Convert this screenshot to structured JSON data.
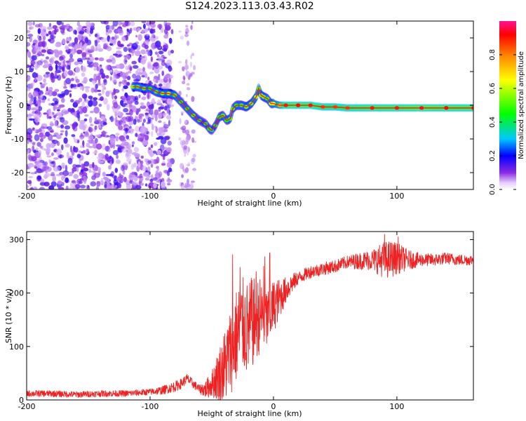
{
  "title": "S124.2023.113.03.43.R02",
  "chart_data": [
    {
      "type": "heatmap",
      "name": "spectrogram",
      "xlabel": "Height of straight line (km)",
      "ylabel": "Frequency (Hz)",
      "xlim": [
        -200,
        162
      ],
      "ylim": [
        -25,
        25
      ],
      "xticks": [
        -200,
        -100,
        0,
        100
      ],
      "yticks": [
        -20,
        -10,
        0,
        10,
        20
      ],
      "ridge": {
        "x": [
          -114,
          -110,
          -105,
          -100,
          -95,
          -90,
          -85,
          -80,
          -75,
          -70,
          -65,
          -60,
          -55,
          -52,
          -50,
          -47,
          -44,
          -41,
          -38,
          -35,
          -33,
          -30,
          -26,
          -22,
          -18,
          -14,
          -12,
          -10,
          -8,
          -5,
          -2,
          0,
          5,
          10,
          20,
          30,
          40,
          50,
          60,
          80,
          100,
          120,
          140,
          162
        ],
        "freq": [
          5.5,
          5.5,
          5.0,
          5.0,
          4.0,
          3.5,
          3.5,
          3.0,
          1.0,
          -1.0,
          -3.0,
          -4.5,
          -5.5,
          -7.0,
          -7.5,
          -6.0,
          -3.5,
          -3.0,
          -4.5,
          -4.0,
          -1.0,
          0.0,
          0.0,
          -0.5,
          0.5,
          2.5,
          5.0,
          3.0,
          2.5,
          2.0,
          0.5,
          0.5,
          0.0,
          0.0,
          0.0,
          0.0,
          -0.5,
          -0.5,
          -0.8,
          -0.8,
          -0.8,
          -0.8,
          -0.8,
          -0.8
        ],
        "amplitude": [
          0.55,
          0.5,
          0.5,
          0.45,
          0.5,
          0.55,
          0.6,
          0.5,
          0.45,
          0.45,
          0.5,
          0.4,
          0.4,
          0.45,
          0.35,
          0.4,
          0.45,
          0.5,
          0.45,
          0.5,
          0.5,
          0.45,
          0.5,
          0.55,
          0.55,
          0.6,
          0.5,
          0.55,
          0.55,
          0.5,
          0.6,
          0.65,
          0.75,
          0.9,
          0.92,
          0.9,
          0.85,
          0.85,
          0.85,
          0.9,
          0.9,
          0.95,
          0.92,
          0.9
        ]
      },
      "noise_region_x": [
        -200,
        -90
      ],
      "colorbar": {
        "label": "Normalized spectral amplitude",
        "ticks": [
          0.0,
          0.2,
          0.4,
          0.6,
          0.8
        ],
        "range": [
          0.0,
          1.0
        ]
      }
    },
    {
      "type": "line",
      "name": "snr",
      "xlabel": "Height of straight line (km)",
      "ylabel": "SNR (10 * v/v)",
      "xlim": [
        -200,
        162
      ],
      "ylim": [
        0,
        315
      ],
      "xticks": [
        -200,
        -100,
        0,
        100
      ],
      "yticks": [
        0,
        100,
        200,
        300
      ],
      "color": "#ee2222",
      "envelope": {
        "x": [
          -200,
          -180,
          -160,
          -140,
          -120,
          -100,
          -90,
          -80,
          -75,
          -70,
          -65,
          -60,
          -55,
          -50,
          -45,
          -40,
          -35,
          -30,
          -25,
          -20,
          -15,
          -10,
          -5,
          0,
          5,
          10,
          15,
          20,
          30,
          40,
          50,
          60,
          70,
          80,
          90,
          100,
          110,
          120,
          130,
          140,
          150,
          162
        ],
        "y": [
          12,
          12,
          10,
          12,
          12,
          15,
          18,
          25,
          30,
          40,
          30,
          20,
          20,
          30,
          45,
          60,
          90,
          120,
          140,
          130,
          150,
          160,
          150,
          175,
          190,
          205,
          218,
          228,
          240,
          245,
          250,
          258,
          260,
          262,
          262,
          265,
          262,
          262,
          262,
          265,
          262,
          262
        ]
      },
      "noise_amplitude": {
        "x": [
          -200,
          -100,
          -80,
          -60,
          -50,
          -40,
          -30,
          -20,
          -10,
          0,
          10,
          20,
          60,
          80,
          90,
          95,
          100,
          110,
          120,
          162
        ],
        "amp": [
          6,
          6,
          10,
          8,
          25,
          70,
          90,
          90,
          70,
          50,
          25,
          12,
          12,
          20,
          35,
          35,
          30,
          18,
          12,
          10
        ]
      },
      "spikes": [
        {
          "x": -33,
          "y": 272
        },
        {
          "x": -27,
          "y": 248
        },
        {
          "x": -18,
          "y": 228
        },
        {
          "x": -14,
          "y": 240
        },
        {
          "x": -8,
          "y": 250
        },
        {
          "x": -3,
          "y": 275
        },
        {
          "x": -7,
          "y": 268
        },
        {
          "x": 90,
          "y": 310
        },
        {
          "x": 101,
          "y": 305
        }
      ]
    }
  ]
}
